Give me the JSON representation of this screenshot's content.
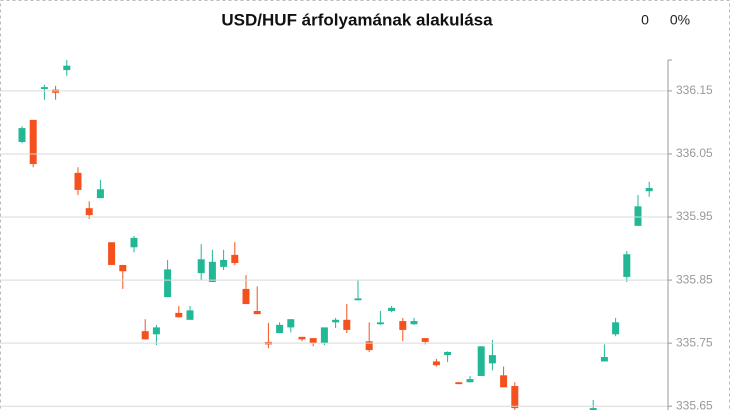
{
  "chart_data": {
    "type": "candlestick",
    "title": "USD/HUF árfolyamának alakulása",
    "annotations": [
      "0",
      "0%"
    ],
    "up_color": "#22b795",
    "down_color": "#f4511e",
    "ylim": [
      335.644,
      336.199
    ],
    "yticks": [
      335.65,
      335.75,
      335.85,
      335.95,
      336.05,
      336.15
    ],
    "grid": true,
    "open": [
      336.069,
      336.104,
      336.153,
      336.152,
      336.183,
      336.02,
      335.964,
      335.98,
      335.91,
      335.874,
      335.902,
      335.769,
      335.764,
      335.823,
      335.798,
      335.787,
      335.861,
      335.847,
      335.871,
      335.89,
      335.836,
      335.801,
      335.752,
      335.766,
      335.775,
      335.76,
      335.758,
      335.75,
      335.783,
      335.787,
      335.818,
      335.753,
      335.78,
      335.801,
      335.785,
      335.78,
      335.758,
      335.721,
      335.731,
      335.688,
      335.688,
      335.698,
      335.718,
      335.699,
      335.682,
      null,
      null,
      null,
      null,
      null,
      null,
      335.644,
      335.721,
      335.764,
      335.855,
      335.936,
      335.991
    ],
    "high": [
      336.094,
      336.104,
      336.16,
      336.158,
      336.199,
      336.029,
      335.975,
      336.009,
      335.91,
      335.874,
      335.92,
      335.788,
      335.779,
      335.882,
      335.809,
      335.809,
      335.907,
      335.898,
      335.898,
      335.91,
      335.858,
      335.84,
      335.782,
      335.783,
      335.788,
      335.76,
      335.758,
      335.775,
      335.79,
      335.812,
      335.85,
      335.783,
      335.801,
      335.809,
      335.79,
      335.79,
      335.758,
      335.725,
      335.737,
      335.688,
      335.698,
      335.745,
      335.755,
      335.713,
      335.688,
      null,
      null,
      null,
      null,
      null,
      null,
      335.66,
      335.748,
      335.79,
      335.896,
      335.985,
      336.006
    ],
    "low": [
      336.067,
      336.029,
      336.136,
      336.136,
      336.174,
      335.985,
      335.947,
      335.98,
      335.874,
      335.836,
      335.894,
      335.756,
      335.747,
      335.823,
      335.791,
      335.787,
      335.85,
      335.847,
      335.866,
      335.874,
      335.812,
      335.796,
      335.742,
      335.766,
      335.767,
      335.753,
      335.745,
      335.747,
      335.774,
      335.766,
      335.818,
      335.736,
      335.779,
      335.799,
      335.753,
      335.779,
      335.748,
      335.713,
      335.72,
      335.685,
      335.688,
      335.698,
      335.707,
      335.68,
      335.644,
      null,
      null,
      null,
      null,
      null,
      null,
      335.64,
      335.721,
      335.761,
      335.847,
      335.936,
      335.982
    ],
    "close": [
      336.091,
      336.034,
      336.156,
      336.147,
      336.19,
      335.993,
      335.953,
      335.994,
      335.874,
      335.864,
      335.917,
      335.756,
      335.775,
      335.867,
      335.791,
      335.802,
      335.883,
      335.879,
      335.882,
      335.877,
      335.812,
      335.796,
      335.748,
      335.779,
      335.788,
      335.756,
      335.75,
      335.775,
      335.787,
      335.771,
      335.821,
      335.739,
      335.783,
      335.806,
      335.771,
      335.785,
      335.752,
      335.715,
      335.736,
      335.685,
      335.693,
      335.745,
      335.731,
      335.68,
      335.647,
      null,
      null,
      null,
      null,
      null,
      null,
      335.647,
      335.728,
      335.783,
      335.891,
      335.967,
      335.996
    ]
  }
}
